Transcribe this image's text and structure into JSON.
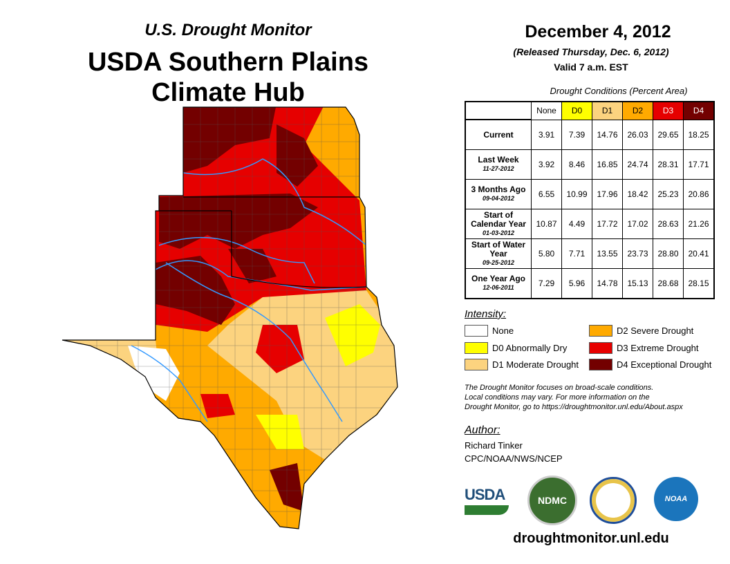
{
  "header": {
    "subtitle": "U.S. Drought Monitor",
    "title_line1": "USDA Southern Plains",
    "title_line2": "Climate Hub"
  },
  "info": {
    "date": "December 4, 2012",
    "released": "(Released Thursday, Dec. 6, 2012)",
    "valid": "Valid 7 a.m. EST"
  },
  "table": {
    "caption": "Drought Conditions (Percent Area)",
    "columns": [
      {
        "label": "None",
        "color": "#ffffff",
        "text": "#000000"
      },
      {
        "label": "D0",
        "color": "#ffff00",
        "text": "#000000"
      },
      {
        "label": "D1",
        "color": "#fcd37f",
        "text": "#000000"
      },
      {
        "label": "D2",
        "color": "#ffaa00",
        "text": "#000000"
      },
      {
        "label": "D3",
        "color": "#e60000",
        "text": "#ffffff"
      },
      {
        "label": "D4",
        "color": "#730000",
        "text": "#ffffff"
      }
    ],
    "rows": [
      {
        "label": "Current",
        "date": "",
        "values": [
          "3.91",
          "7.39",
          "14.76",
          "26.03",
          "29.65",
          "18.25"
        ]
      },
      {
        "label": "Last Week",
        "date": "11-27-2012",
        "values": [
          "3.92",
          "8.46",
          "16.85",
          "24.74",
          "28.31",
          "17.71"
        ]
      },
      {
        "label": "3 Months Ago",
        "date": "09-04-2012",
        "values": [
          "6.55",
          "10.99",
          "17.96",
          "18.42",
          "25.23",
          "20.86"
        ]
      },
      {
        "label": "Start of Calendar Year",
        "date": "01-03-2012",
        "values": [
          "10.87",
          "4.49",
          "17.72",
          "17.02",
          "28.63",
          "21.26"
        ]
      },
      {
        "label": "Start of Water Year",
        "date": "09-25-2012",
        "values": [
          "5.80",
          "7.71",
          "13.55",
          "23.73",
          "28.80",
          "20.41"
        ]
      },
      {
        "label": "One Year Ago",
        "date": "12-06-2011",
        "values": [
          "7.29",
          "5.96",
          "14.78",
          "15.13",
          "28.68",
          "28.15"
        ]
      }
    ]
  },
  "legend": {
    "title": "Intensity:",
    "items": [
      {
        "label": "None",
        "color": "#ffffff"
      },
      {
        "label": "D0 Abnormally Dry",
        "color": "#ffff00"
      },
      {
        "label": "D1 Moderate Drought",
        "color": "#fcd37f"
      },
      {
        "label": "D2 Severe Drought",
        "color": "#ffaa00"
      },
      {
        "label": "D3 Extreme Drought",
        "color": "#e60000"
      },
      {
        "label": "D4 Exceptional Drought",
        "color": "#730000"
      }
    ]
  },
  "note": [
    "The Drought Monitor focuses on broad-scale conditions.",
    "Local conditions may vary. For more information on the",
    "Drought Monitor, go to https://droughtmonitor.unl.edu/About.aspx"
  ],
  "author": {
    "title": "Author:",
    "name": "Richard Tinker",
    "org": "CPC/NOAA/NWS/NCEP"
  },
  "logos": {
    "usda": "USDA",
    "ndmc": "NDMC",
    "noaa": "NOAA"
  },
  "footer_url": "droughtmonitor.unl.edu"
}
